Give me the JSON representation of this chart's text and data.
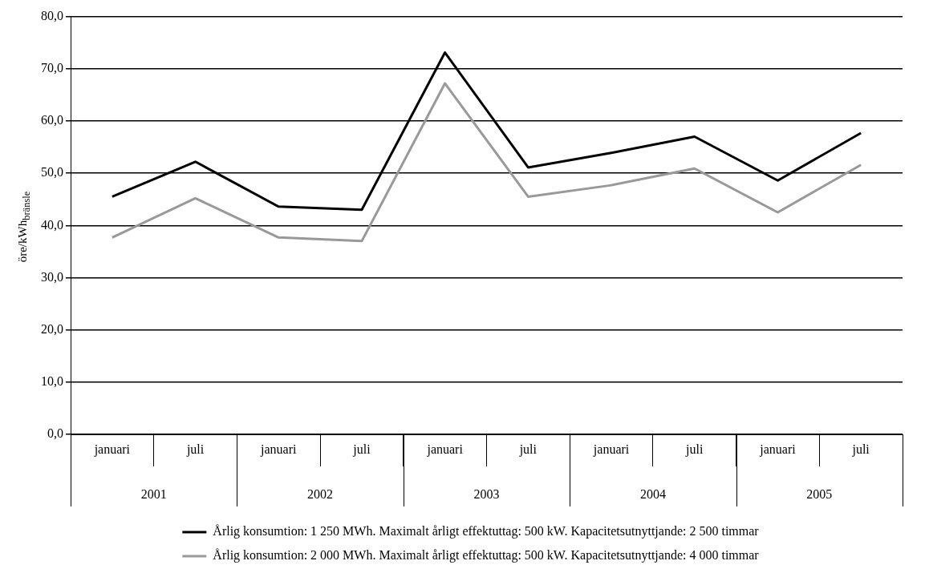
{
  "chart_data": {
    "type": "line",
    "ylabel": "öre/kWh$_{bränsle}$",
    "categories": [
      "januari",
      "juli",
      "januari",
      "juli",
      "januari",
      "juli",
      "januari",
      "juli",
      "januari",
      "juli"
    ],
    "annotations": [
      "2001",
      "2002",
      "2003",
      "2004",
      "2005"
    ],
    "series": [
      {
        "name": "Årlig konsumtion: 1 250 MWh. Maximalt årligt effektuttag: 500 kW. Kapacitetsutnyttjande: 2 500 timmar",
        "color": "#000000",
        "values": [
          45.5,
          52.2,
          43.6,
          43.0,
          73.1,
          51.1,
          53.9,
          57.0,
          48.6,
          57.7
        ]
      },
      {
        "name": "Årlig konsumtion: 2 000 MWh. Maximalt årligt effektuttag: 500 kW. Kapacitetsutnyttjande: 4 000 timmar",
        "color": "#999999",
        "values": [
          37.7,
          45.2,
          37.7,
          37.0,
          67.2,
          45.5,
          47.7,
          50.9,
          42.5,
          51.6
        ]
      }
    ],
    "ylim": [
      0,
      80
    ],
    "yticks": [
      {
        "value": 0,
        "label": "0,0"
      },
      {
        "value": 10,
        "label": "10,0"
      },
      {
        "value": 20,
        "label": "20,0"
      },
      {
        "value": 30,
        "label": "30,0"
      },
      {
        "value": 40,
        "label": "40,0"
      },
      {
        "value": 50,
        "label": "50,0"
      },
      {
        "value": 60,
        "label": "60,0"
      },
      {
        "value": 70,
        "label": "70,0"
      },
      {
        "value": 80,
        "label": "80,0"
      }
    ],
    "grid": "y",
    "legend": "bottom",
    "marker": "none",
    "line_style": "solid"
  }
}
